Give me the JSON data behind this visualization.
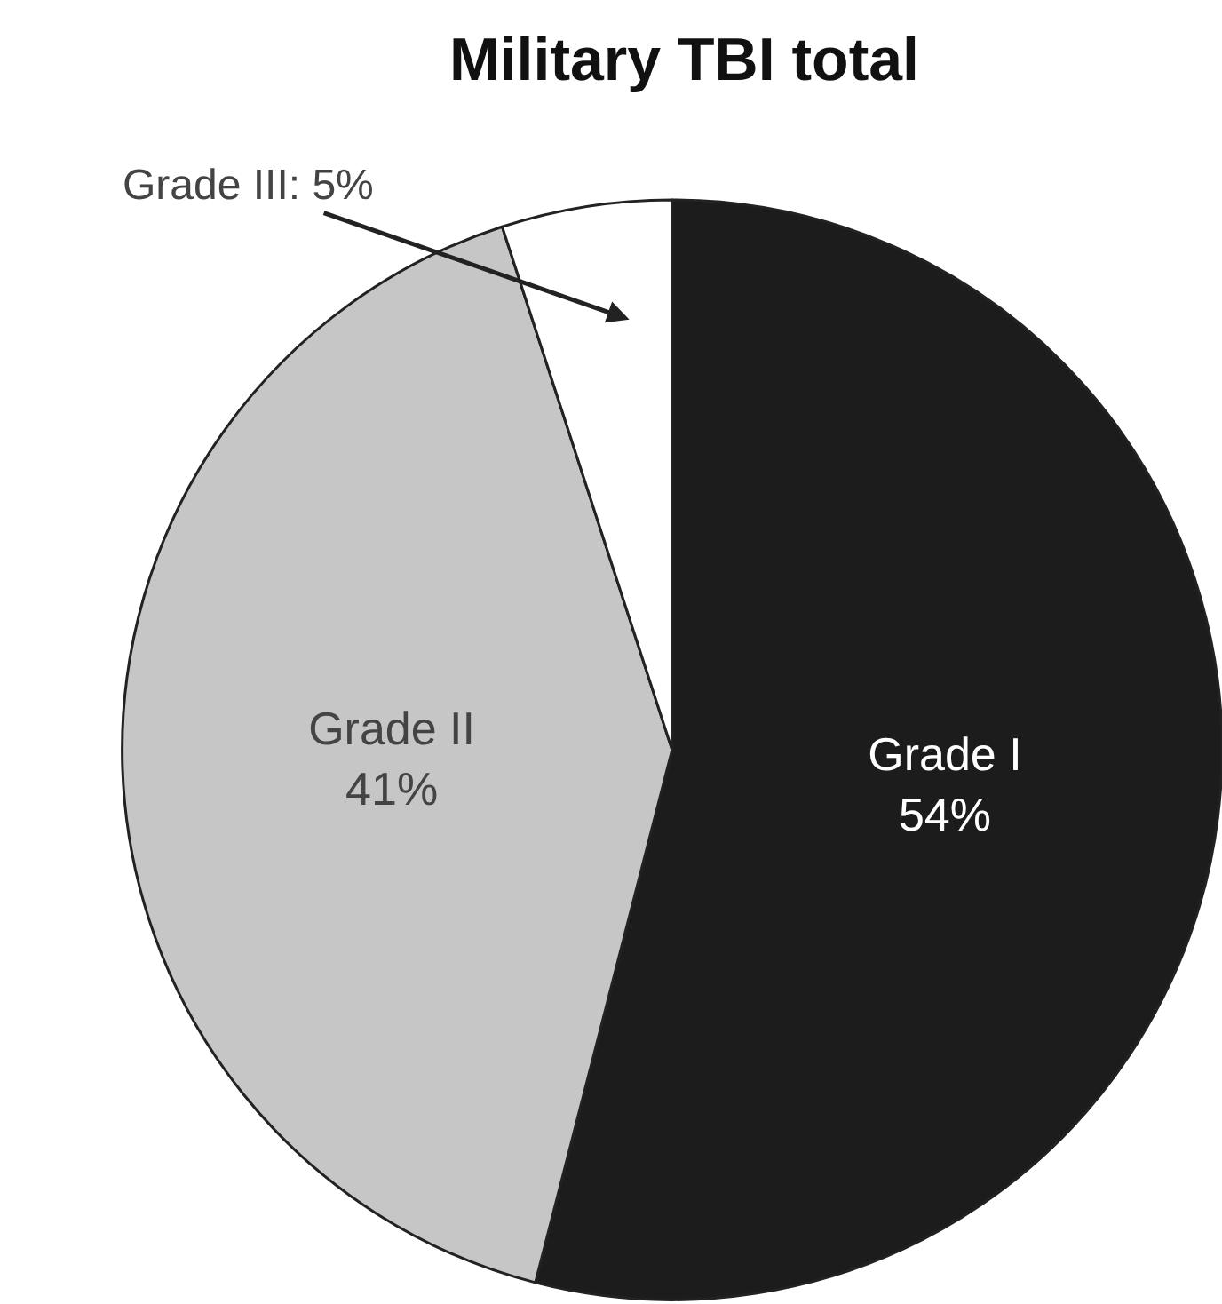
{
  "chart_data": {
    "type": "pie",
    "title": "Military TBI total",
    "categories": [
      "Grade I",
      "Grade II",
      "Grade III"
    ],
    "values": [
      54,
      41,
      5
    ],
    "colors": [
      "#1c1c1c",
      "#c6c6c6",
      "#ffffff"
    ],
    "value_labels": [
      "54%",
      "41%",
      "5%"
    ]
  }
}
